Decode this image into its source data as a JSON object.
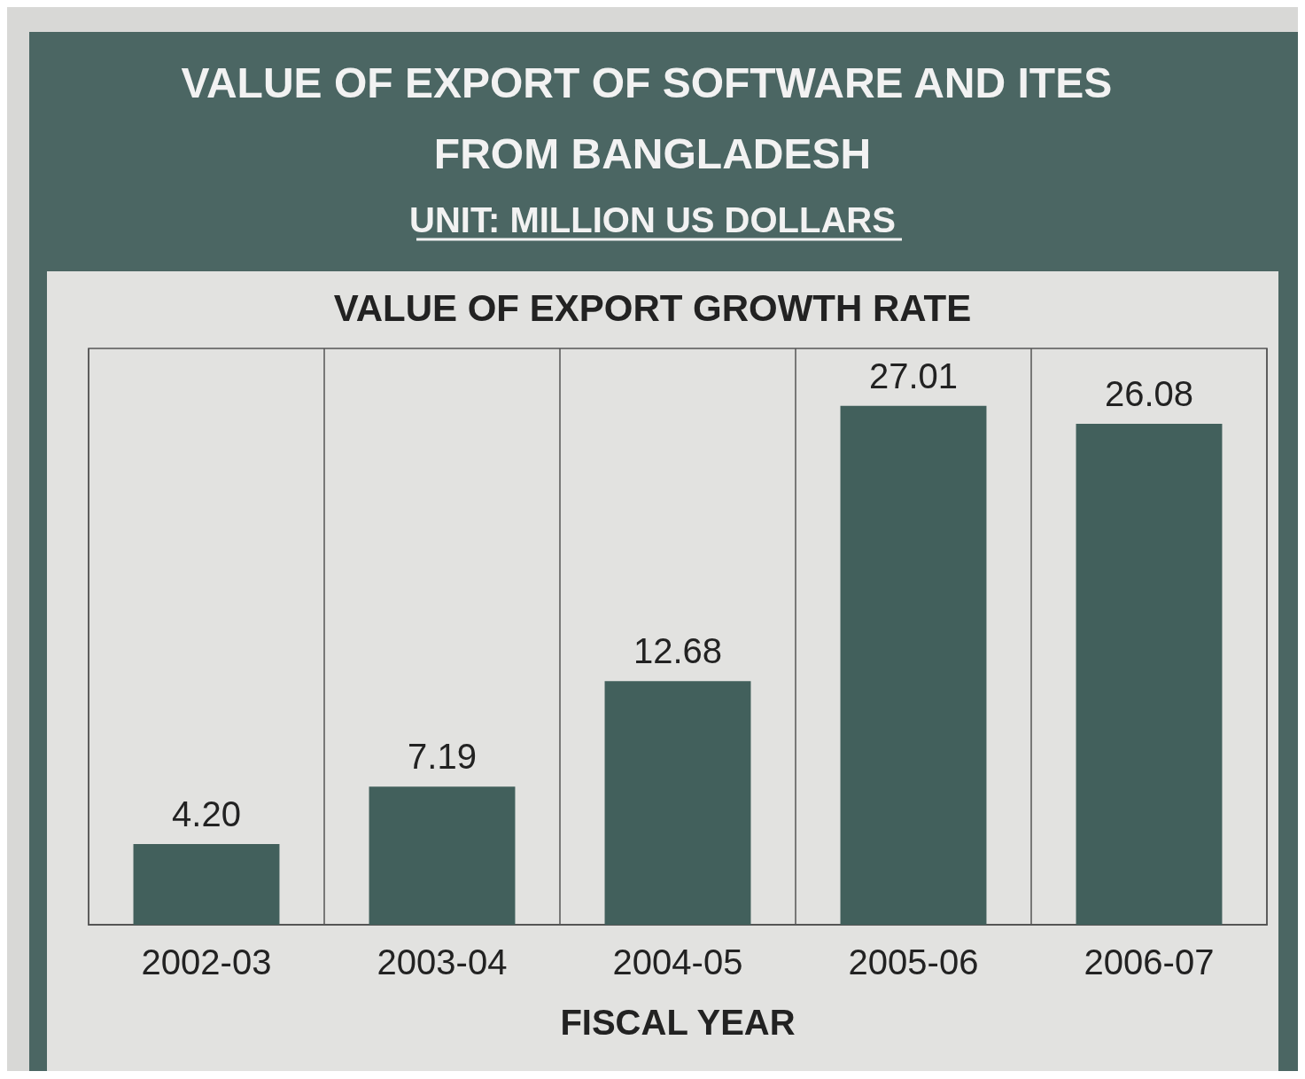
{
  "chart_data": {
    "type": "bar",
    "title": "VALUE OF EXPORT OF SOFTWARE AND ITES FROM BANGLADESH",
    "subtitle": "UNIT: MILLION US DOLLARS",
    "annotations": [
      "VALUE OF EXPORT GROWTH RATE"
    ],
    "xlabel": "FISCAL YEAR",
    "categories": [
      "2002-03",
      "2003-04",
      "2004-05",
      "2005-06",
      "2006-07"
    ],
    "values": [
      4.2,
      7.19,
      12.68,
      27.01,
      26.08
    ],
    "color": "#42605c",
    "data_labels": true,
    "value_labels": [
      "4.20",
      "7.19",
      "12.68",
      "27.01",
      "26.08"
    ],
    "grid": "x",
    "tick_labels": "x"
  }
}
